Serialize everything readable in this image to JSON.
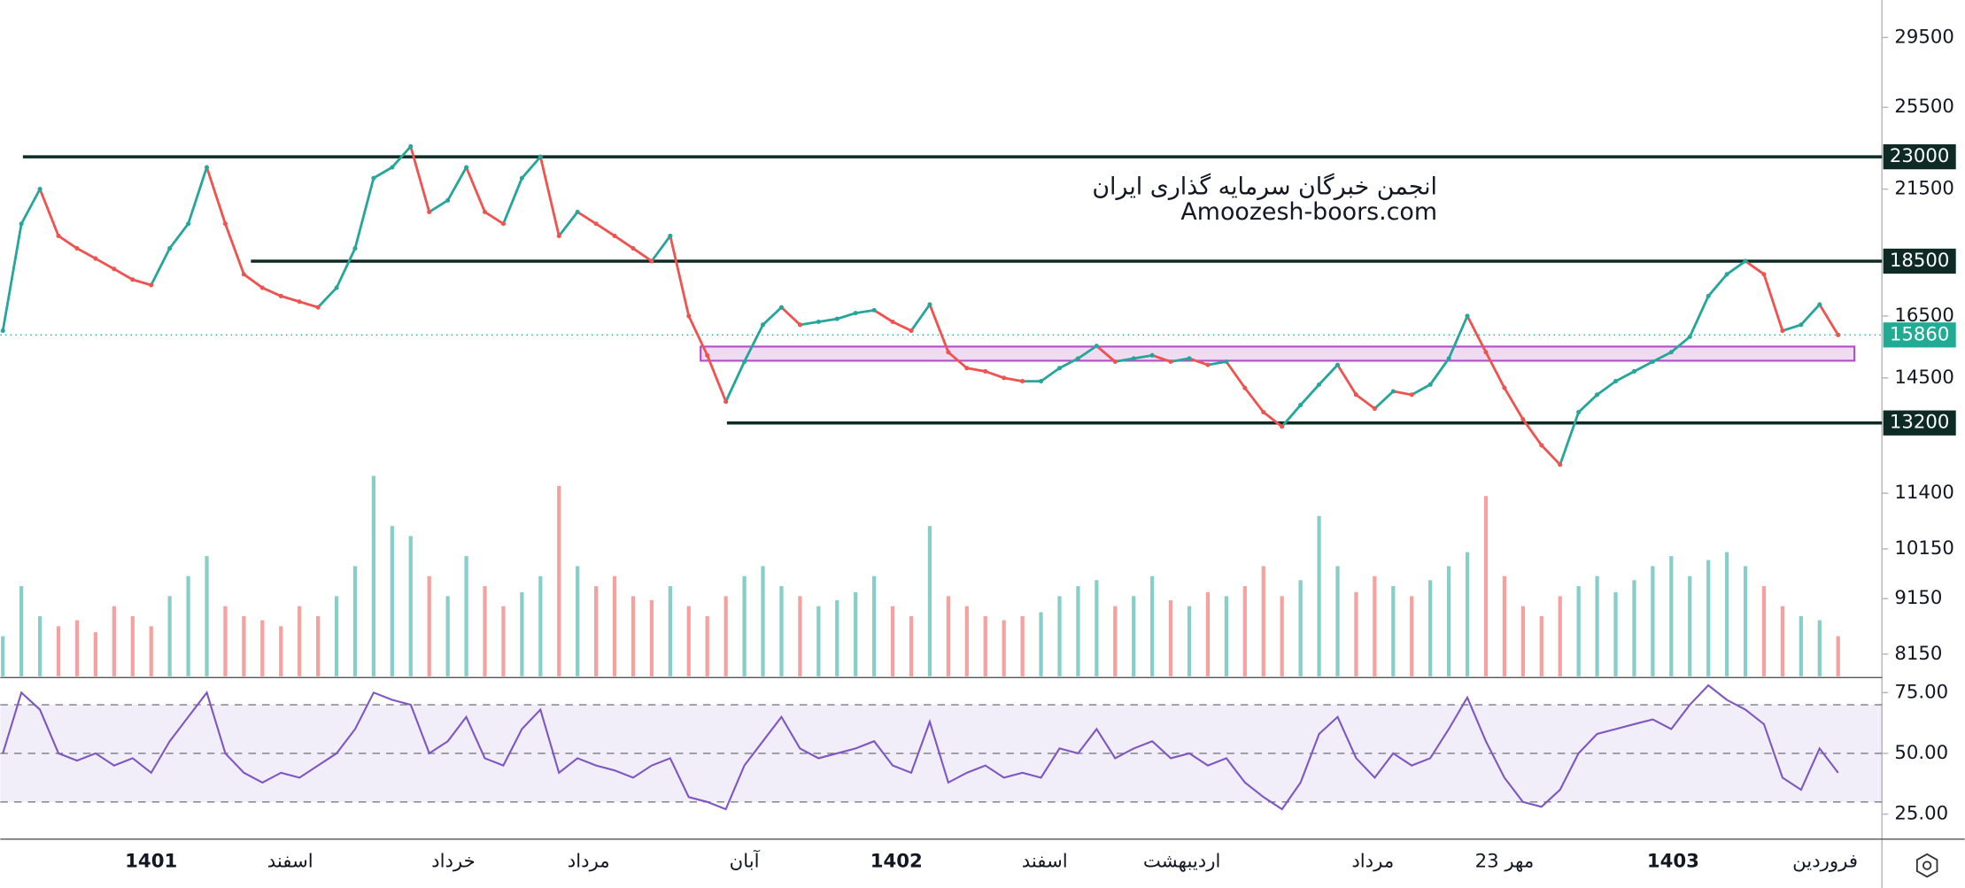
{
  "chart_data": {
    "type": "line",
    "log_scale": true,
    "xlim": [
      0,
      99
    ],
    "xticks": [
      {
        "value": 8,
        "label": "1401"
      },
      {
        "value": 15.5,
        "label": "اسفند"
      },
      {
        "value": 24.3,
        "label": "خرداد"
      },
      {
        "value": 31.6,
        "label": "مرداد"
      },
      {
        "value": 40,
        "label": "آبان"
      },
      {
        "value": 48.2,
        "label": "1402"
      },
      {
        "value": 56.2,
        "label": "اسفند"
      },
      {
        "value": 63.6,
        "label": "اردیبهشت"
      },
      {
        "value": 73.9,
        "label": "مرداد"
      },
      {
        "value": 81,
        "label": "23 مهر"
      },
      {
        "value": 90.1,
        "label": "1403"
      },
      {
        "value": 98.3,
        "label": "فروردین"
      }
    ],
    "ylim": [
      7780,
      31900
    ],
    "yticks": [
      29500,
      25500,
      21500,
      16500,
      14500,
      11400,
      10150,
      9150,
      8150
    ],
    "values": [
      16000,
      20000,
      21500,
      19500,
      19000,
      18600,
      18200,
      17800,
      17600,
      19000,
      20000,
      22500,
      20000,
      18000,
      17500,
      17200,
      17000,
      16800,
      17500,
      19000,
      22000,
      22500,
      23500,
      20500,
      21000,
      22500,
      20500,
      20000,
      22000,
      23000,
      19500,
      20500,
      20000,
      19500,
      19000,
      18500,
      19500,
      16500,
      15200,
      13800,
      15000,
      16200,
      16800,
      16200,
      16300,
      16400,
      16600,
      16700,
      16300,
      16000,
      16900,
      15300,
      14800,
      14700,
      14500,
      14400,
      14400,
      14800,
      15100,
      15500,
      15000,
      15100,
      15200,
      15000,
      15100,
      14900,
      15000,
      14200,
      13500,
      13100,
      13700,
      14300,
      14900,
      14000,
      13600,
      14100,
      14000,
      14300,
      15100,
      16500,
      15300,
      14200,
      13300,
      12600,
      12100,
      13500,
      14000,
      14400,
      14700,
      15000,
      15300,
      15800,
      17200,
      18000,
      18500,
      18000,
      16000,
      16200,
      16900,
      15860
    ],
    "up_color": "#26a69a",
    "down_color": "#ef5350",
    "levels": [
      23000,
      18500,
      13200
    ],
    "level_color": "#0d2b24",
    "last_price": 15860,
    "last_color": "#22ab94",
    "zone": [
      15030,
      15480
    ],
    "zone_color": "#b04fc4",
    "volume": [
      20,
      45,
      30,
      25,
      28,
      22,
      35,
      30,
      25,
      40,
      50,
      60,
      35,
      30,
      28,
      25,
      35,
      30,
      40,
      55,
      100,
      75,
      70,
      50,
      40,
      60,
      45,
      35,
      42,
      50,
      95,
      55,
      45,
      50,
      40,
      38,
      45,
      35,
      30,
      40,
      50,
      55,
      45,
      40,
      35,
      38,
      42,
      50,
      35,
      30,
      75,
      40,
      35,
      30,
      28,
      30,
      32,
      40,
      45,
      48,
      35,
      40,
      50,
      38,
      35,
      42,
      40,
      45,
      55,
      40,
      48,
      80,
      55,
      42,
      50,
      45,
      40,
      48,
      55,
      62,
      90,
      50,
      35,
      30,
      40,
      45,
      50,
      42,
      48,
      55,
      60,
      50,
      58,
      62,
      55,
      45,
      35,
      30,
      28,
      20
    ],
    "rsi": {
      "values": [
        50,
        75,
        68,
        50,
        47,
        50,
        45,
        48,
        42,
        55,
        65,
        75,
        50,
        42,
        38,
        42,
        40,
        45,
        50,
        60,
        75,
        72,
        70,
        50,
        55,
        65,
        48,
        45,
        60,
        68,
        42,
        48,
        45,
        43,
        40,
        45,
        48,
        32,
        30,
        27,
        45,
        55,
        65,
        52,
        48,
        50,
        52,
        55,
        45,
        42,
        63,
        38,
        42,
        45,
        40,
        42,
        40,
        52,
        50,
        60,
        48,
        52,
        55,
        48,
        50,
        45,
        48,
        38,
        32,
        27,
        38,
        58,
        65,
        48,
        40,
        50,
        45,
        48,
        60,
        73,
        55,
        40,
        30,
        28,
        35,
        50,
        58,
        60,
        62,
        64,
        60,
        70,
        78,
        72,
        68,
        62,
        40,
        35,
        52,
        42
      ],
      "ylim": [
        14.7,
        81.2
      ],
      "yticks": [
        {
          "value": 75,
          "label": "75.00"
        },
        {
          "value": 50,
          "label": "50.00"
        },
        {
          "value": 25,
          "label": "25.00"
        }
      ],
      "band": [
        30,
        70
      ],
      "midline": 50,
      "color": "#7e57c2"
    },
    "annotations": [
      "انجمن خبرگان سرمایه گذاری ایران",
      "Amoozesh-boors.com"
    ]
  }
}
